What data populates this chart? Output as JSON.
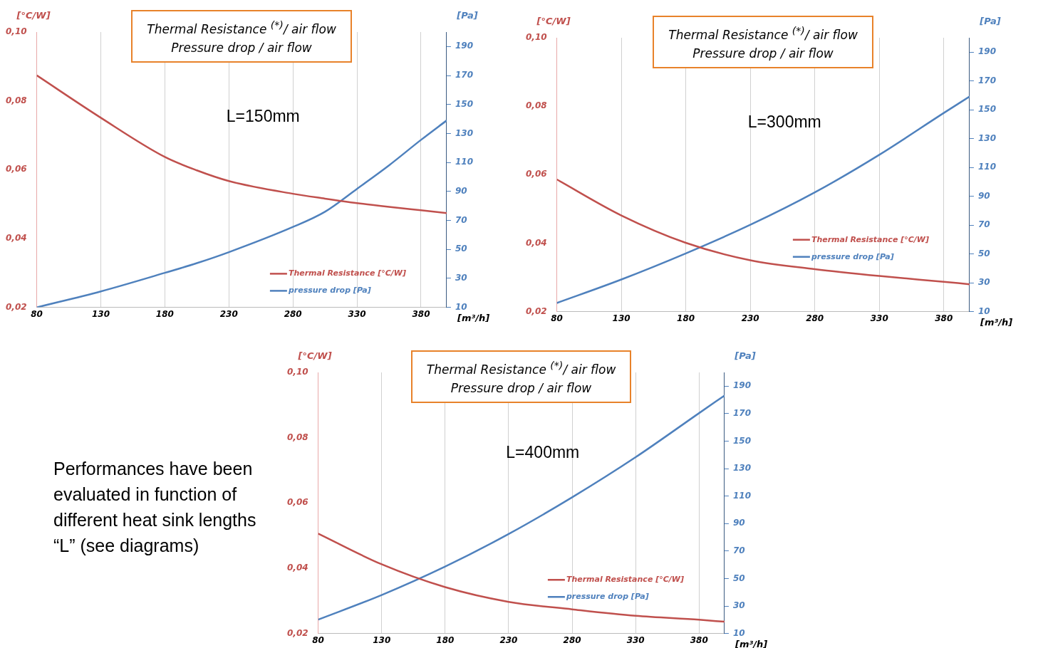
{
  "chart_data": [
    {
      "type": "line",
      "title": "Thermal Resistance $^{(*)}$/ air flow",
      "subtitle": "Pressure drop / air flow",
      "annotations": [
        "L=150mm"
      ],
      "xlabel": "[m³/h]",
      "ylabel": "[°C/W]",
      "y2label": "[Pa]",
      "x": [
        80,
        130,
        180,
        205,
        230,
        280,
        305,
        330,
        355,
        380,
        400
      ],
      "series": [
        {
          "name": "Thermal Resistance [°C/W]",
          "color": "#c0504d",
          "values": [
            0.0874,
            0.0751,
            0.0637,
            0.0598,
            0.0567,
            0.053,
            0.0516,
            0.0503,
            0.0492,
            0.0482,
            0.0474
          ]
        },
        {
          "name": "pressure drop [Pa]",
          "color": "#4f81bd",
          "axis": "y2",
          "values": [
            10,
            21,
            33.8,
            40.5,
            48.1,
            65.5,
            76,
            91.8,
            108,
            125.6,
            139
          ]
        }
      ],
      "xlim": [
        80,
        400
      ],
      "xticks": [
        80,
        130,
        180,
        230,
        280,
        330,
        380
      ],
      "ylim": [
        0.02,
        0.1
      ],
      "yticks": [
        {
          "value": 0.02,
          "label": "0,02"
        },
        {
          "value": 0.04,
          "label": "0,04"
        },
        {
          "value": 0.06,
          "label": "0,06"
        },
        {
          "value": 0.08,
          "label": "0,08"
        },
        {
          "value": 0.1,
          "label": "0,10"
        }
      ],
      "y2lim": [
        10,
        200
      ],
      "y2ticks": [
        10,
        30,
        50,
        70,
        90,
        110,
        130,
        150,
        170,
        190
      ],
      "grid": "x",
      "legend": "bottom right"
    },
    {
      "type": "line",
      "title": "Thermal Resistance $^{(*)}$/ air flow",
      "subtitle": "Pressure drop / air flow",
      "annotations": [
        "L=300mm"
      ],
      "xlabel": "[m³/h]",
      "ylabel": "[°C/W]",
      "y2label": "[Pa]",
      "x": [
        80,
        130,
        180,
        230,
        280,
        330,
        380,
        400
      ],
      "series": [
        {
          "name": "Thermal Resistance [°C/W]",
          "color": "#c0504d",
          "values": [
            0.0586,
            0.0481,
            0.0401,
            0.035,
            0.0324,
            0.0304,
            0.0287,
            0.028
          ]
        },
        {
          "name": "pressure drop [Pa]",
          "color": "#4f81bd",
          "axis": "y2",
          "values": [
            16,
            32.3,
            50.4,
            70.2,
            92.7,
            118.8,
            147.8,
            159.2
          ]
        }
      ],
      "xlim": [
        80,
        400
      ],
      "xticks": [
        80,
        130,
        180,
        230,
        280,
        330,
        380
      ],
      "ylim": [
        0.02,
        0.1
      ],
      "yticks": [
        {
          "value": 0.02,
          "label": "0,02"
        },
        {
          "value": 0.04,
          "label": "0,04"
        },
        {
          "value": 0.06,
          "label": "0,06"
        },
        {
          "value": 0.08,
          "label": "0,08"
        },
        {
          "value": 0.1,
          "label": "0,10"
        }
      ],
      "y2lim": [
        10,
        200
      ],
      "y2ticks": [
        10,
        30,
        50,
        70,
        90,
        110,
        130,
        150,
        170,
        190
      ],
      "grid": "x",
      "legend": "bottom right"
    },
    {
      "type": "other",
      "annotations": [
        "Performances have been evaluated in function of different heat sink lengths “L” (see diagrams)"
      ]
    },
    {
      "type": "line",
      "title": "Thermal Resistance $^{(*)}$/ air flow",
      "subtitle": "Pressure drop / air flow",
      "annotations": [
        "L=400mm"
      ],
      "xlabel": "[m³/h]",
      "ylabel": "[°C/W]",
      "y2label": "[Pa]",
      "x": [
        80,
        130,
        180,
        230,
        280,
        330,
        380,
        400
      ],
      "series": [
        {
          "name": "Thermal Resistance [°C/W]",
          "color": "#c0504d",
          "values": [
            0.0506,
            0.0412,
            0.0342,
            0.0297,
            0.0274,
            0.0254,
            0.0242,
            0.0236
          ]
        },
        {
          "name": "pressure drop [Pa]",
          "color": "#4f81bd",
          "axis": "y2",
          "values": [
            20.1,
            38,
            58.7,
            82.4,
            109.1,
            138.3,
            170.4,
            183.2
          ]
        }
      ],
      "xlim": [
        80,
        400
      ],
      "xticks": [
        80,
        130,
        180,
        230,
        280,
        330,
        380
      ],
      "ylim": [
        0.02,
        0.1
      ],
      "yticks": [
        {
          "value": 0.02,
          "label": "0,02"
        },
        {
          "value": 0.04,
          "label": "0,04"
        },
        {
          "value": 0.06,
          "label": "0,06"
        },
        {
          "value": 0.08,
          "label": "0,08"
        },
        {
          "value": 0.1,
          "label": "0,10"
        }
      ],
      "y2lim": [
        10,
        200
      ],
      "y2ticks": [
        10,
        30,
        50,
        70,
        90,
        110,
        130,
        150,
        170,
        190
      ],
      "grid": "x",
      "legend": "bottom right"
    }
  ]
}
